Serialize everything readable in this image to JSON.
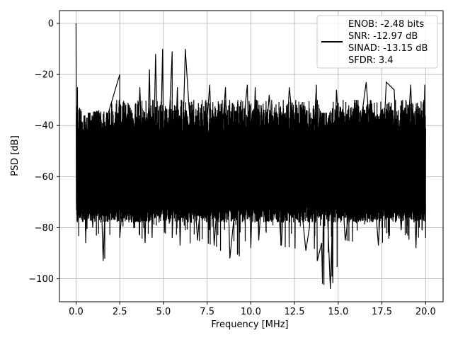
{
  "chart_data": {
    "type": "line",
    "xlabel": "Frequency [MHz]",
    "ylabel": "PSD [dB]",
    "xlim": [
      -0.95,
      21.0
    ],
    "ylim": [
      -109,
      5
    ],
    "xticks": [
      0.0,
      2.5,
      5.0,
      7.5,
      10.0,
      12.5,
      15.0,
      17.5,
      20.0
    ],
    "xtick_labels": [
      "0.0",
      "2.5",
      "5.0",
      "7.5",
      "10.0",
      "12.5",
      "15.0",
      "17.5",
      "20.0"
    ],
    "yticks": [
      0,
      -20,
      -40,
      -60,
      -80,
      -100
    ],
    "ytick_labels": [
      "0",
      "−20",
      "−40",
      "−60",
      "−80",
      "−100"
    ],
    "grid": true,
    "legend_position": "upper-right",
    "series": [
      {
        "name": "ENOB: -2.48 bits",
        "color": "#000000",
        "description_lines": [
          "ENOB: -2.48 bits",
          "SNR: -12.97 dB",
          "SINAD: -13.15 dB",
          "SFDR: 3.4"
        ],
        "x": [
          0.0,
          0.02,
          0.04,
          0.05,
          0.08,
          0.1,
          0.2,
          0.25,
          0.5,
          0.55,
          0.75,
          0.95,
          1.3,
          1.55,
          1.85,
          2.5,
          2.5,
          3.1,
          3.35,
          3.65,
          3.95,
          4.2,
          4.35,
          4.55,
          4.75,
          4.95,
          5.05,
          5.5,
          5.5,
          5.8,
          5.95,
          6.25,
          6.95,
          7.65,
          7.9,
          8.55,
          8.8,
          9.8,
          10.0,
          10.25,
          10.45,
          11.05,
          11.75,
          12.2,
          13.15,
          13.35,
          13.75,
          13.8,
          14.05,
          14.1,
          14.2,
          14.55,
          14.9,
          15.4,
          16.6,
          17.3,
          17.75,
          18.2,
          18.6,
          19.15,
          19.45,
          19.65,
          19.8,
          19.95,
          20.0
        ],
        "y": [
          0.0,
          -70.0,
          -35.0,
          -75.0,
          -25.0,
          -58.0,
          -33.0,
          -76.0,
          -36.0,
          -86.0,
          -35.0,
          -80.0,
          -34.0,
          -93.0,
          -35.0,
          -20.0,
          -84.0,
          -33.0,
          -80.0,
          -25.0,
          -86.0,
          -18.0,
          -84.0,
          -12.0,
          -78.0,
          -10.0,
          -82.0,
          -11.0,
          -84.0,
          -25.0,
          -87.0,
          -10.0,
          -85.0,
          -24.0,
          -87.0,
          -25.0,
          -92.0,
          -24.0,
          -88.0,
          -25.0,
          -85.0,
          -28.0,
          -87.0,
          -25.0,
          -89.0,
          -80.0,
          -24.0,
          -93.0,
          -86.0,
          -102.0,
          -42.0,
          -104.0,
          -26.0,
          -85.0,
          -23.0,
          -87.0,
          -23.0,
          -26.0,
          -81.0,
          -24.0,
          -88.0,
          -33.0,
          -81.0,
          -24.0,
          -84.0
        ]
      }
    ]
  }
}
